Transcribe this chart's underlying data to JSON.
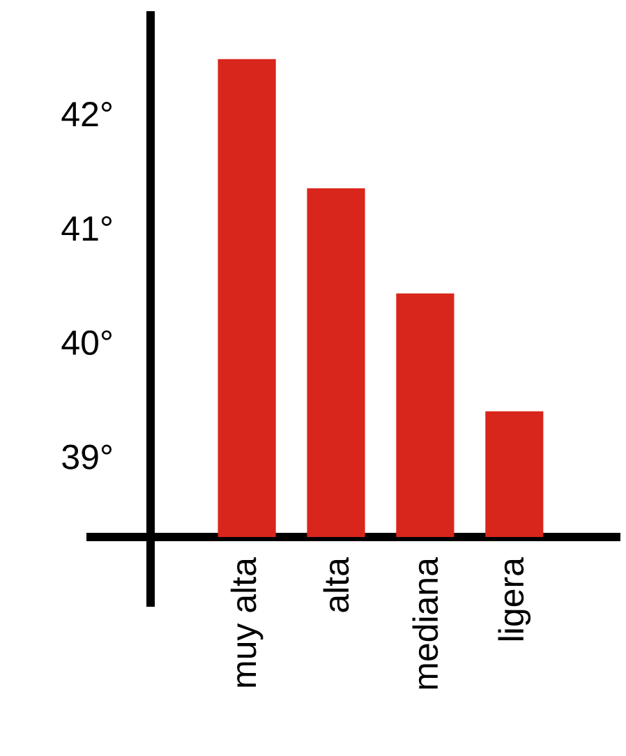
{
  "chart_data": {
    "type": "bar",
    "categories": [
      "muy alta",
      "alta",
      "mediana",
      "ligera"
    ],
    "values": [
      42.48,
      41.35,
      40.43,
      39.4
    ],
    "color": "#d9261c",
    "ylim": [
      38.3,
      42.9
    ],
    "yticks": [
      {
        "value": 39,
        "label": "39°"
      },
      {
        "value": 40,
        "label": "40°"
      },
      {
        "value": 41,
        "label": "41°"
      },
      {
        "value": 42,
        "label": "42°"
      }
    ],
    "grid": false
  }
}
